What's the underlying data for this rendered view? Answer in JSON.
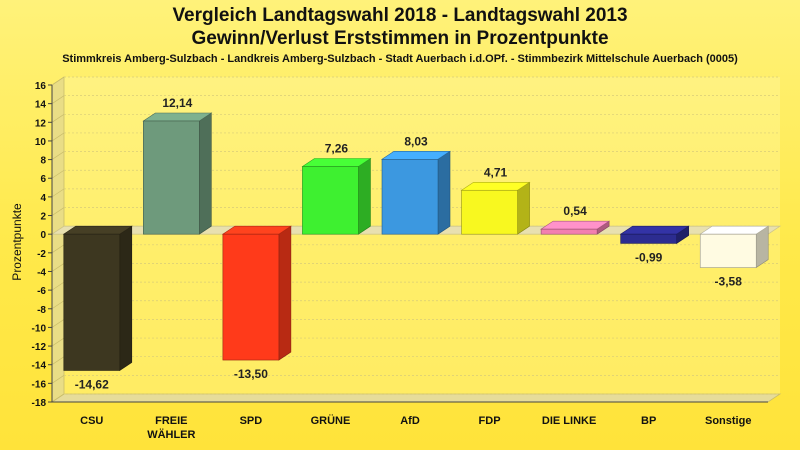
{
  "chart_data": {
    "type": "bar",
    "title": "Vergleich Landtagswahl 2018 - Landtagswahl 2013",
    "subtitle": "Gewinn/Verlust Erststimmen in Prozentpunkte",
    "caption": "Stimmkreis Amberg-Sulzbach - Landkreis Amberg-Sulzbach - Stadt Auerbach i.d.OPf. - Stimmbezirk Mittelschule Auerbach (0005)",
    "xlabel": "",
    "ylabel": "Prozentpunkte",
    "ylim": [
      -18,
      16
    ],
    "yticks": [
      16,
      14,
      12,
      10,
      8,
      6,
      4,
      2,
      0,
      -2,
      -4,
      -6,
      -8,
      -10,
      -12,
      -14,
      -16,
      -18
    ],
    "grid": true,
    "categories": [
      {
        "line1": "CSU",
        "line2": ""
      },
      {
        "line1": "FREIE",
        "line2": "WÄHLER"
      },
      {
        "line1": "SPD",
        "line2": ""
      },
      {
        "line1": "GRÜNE",
        "line2": ""
      },
      {
        "line1": "AfD",
        "line2": ""
      },
      {
        "line1": "FDP",
        "line2": ""
      },
      {
        "line1": "DIE LINKE",
        "line2": ""
      },
      {
        "line1": "BP",
        "line2": ""
      },
      {
        "line1": "Sonstige",
        "line2": ""
      }
    ],
    "values": [
      -14.62,
      12.14,
      -13.5,
      7.26,
      8.03,
      4.71,
      0.54,
      -0.99,
      -3.58
    ],
    "value_labels": [
      "-14,62",
      "12,14",
      "-13,50",
      "7,26",
      "8,03",
      "4,71",
      "0,54",
      "-0,99",
      "-3,58"
    ],
    "colors": [
      "#3d3720",
      "#6e9a7c",
      "#ff3a1a",
      "#3ef030",
      "#3c98e0",
      "#f8f820",
      "#f27fb0",
      "#2c2c90",
      "#fffbe2"
    ]
  }
}
